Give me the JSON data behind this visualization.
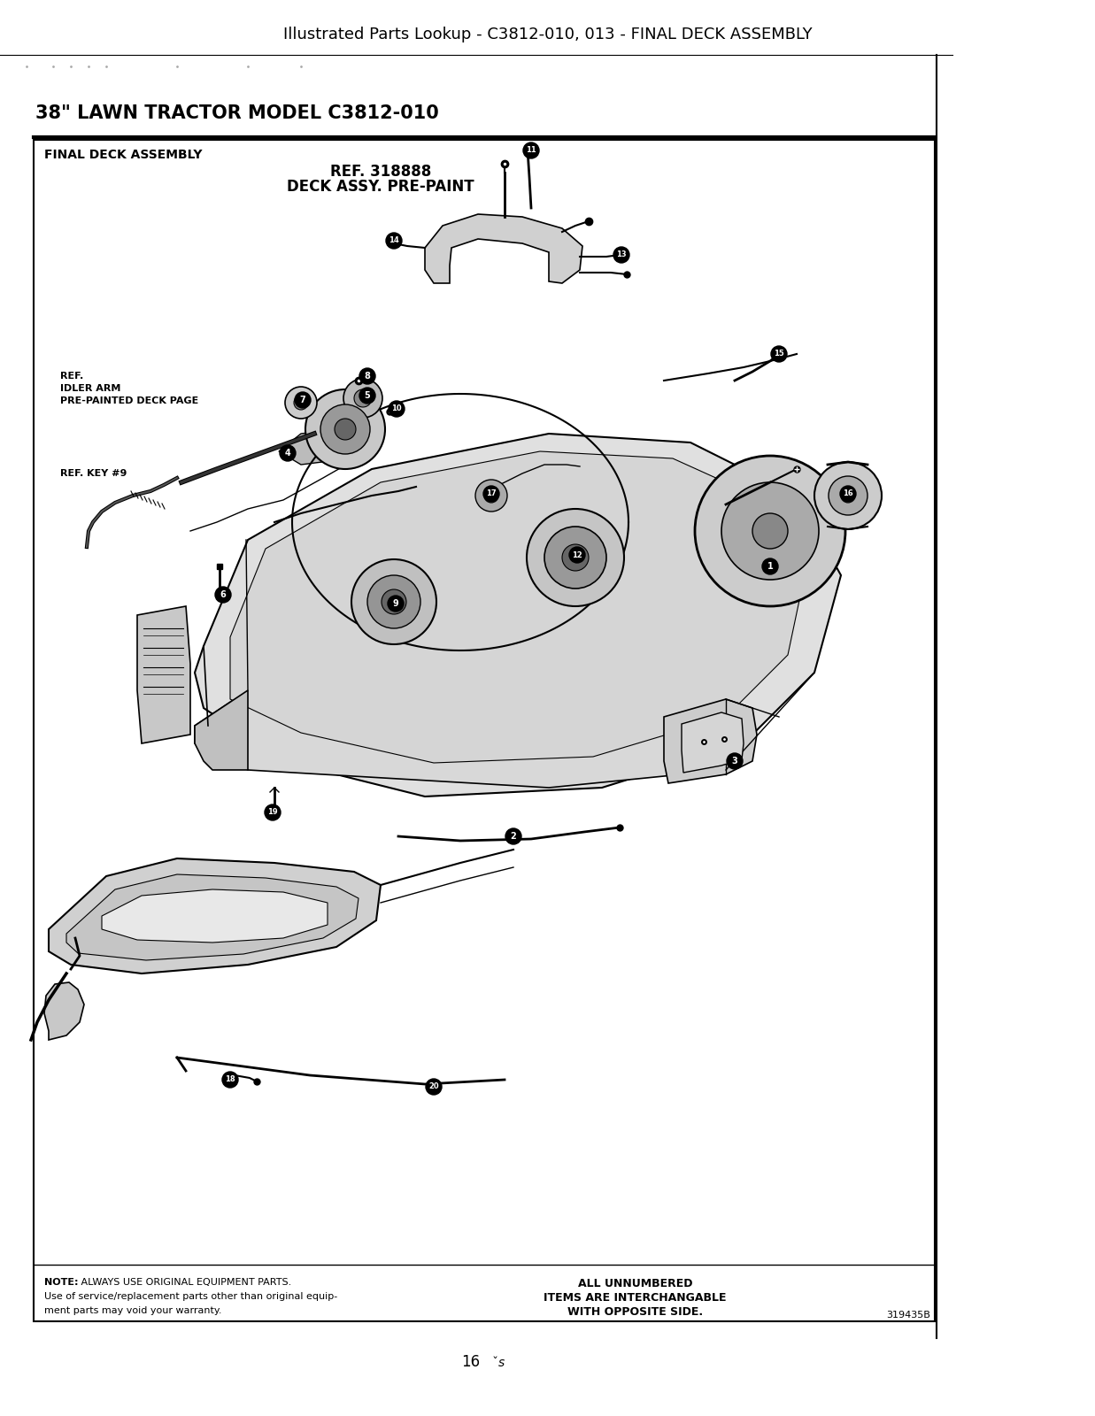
{
  "title": "Illustrated Parts Lookup - C3812-010, 013 - FINAL DECK ASSEMBLY",
  "model_title": "38\" LAWN TRACTOR MODEL C3812-010",
  "section_title": "FINAL DECK ASSEMBLY",
  "ref_label_line1": "REF. 318888",
  "ref_label_line2": "DECK ASSY. PRE-PAINT",
  "ref_idler_line1": "REF.",
  "ref_idler_line2": "IDLER ARM",
  "ref_idler_line3": "PRE-PAINTED DECK PAGE",
  "ref_key": "REF. KEY #9",
  "note_bold": "NOTE:",
  "note_text": " ALWAYS USE ORIGINAL EQUIPMENT PARTS.",
  "note_text2": "Use of service/replacement parts other than original equip-",
  "note_text3": "ment parts may void your warranty.",
  "right_note_line1": "ALL UNNUMBERED",
  "right_note_line2": "ITEMS ARE INTERCHANGABLE",
  "right_note_line3": "WITH OPPOSITE SIDE.",
  "part_num": "319435B",
  "page_num": "16",
  "bg_color": "#ffffff",
  "text_color": "#000000"
}
